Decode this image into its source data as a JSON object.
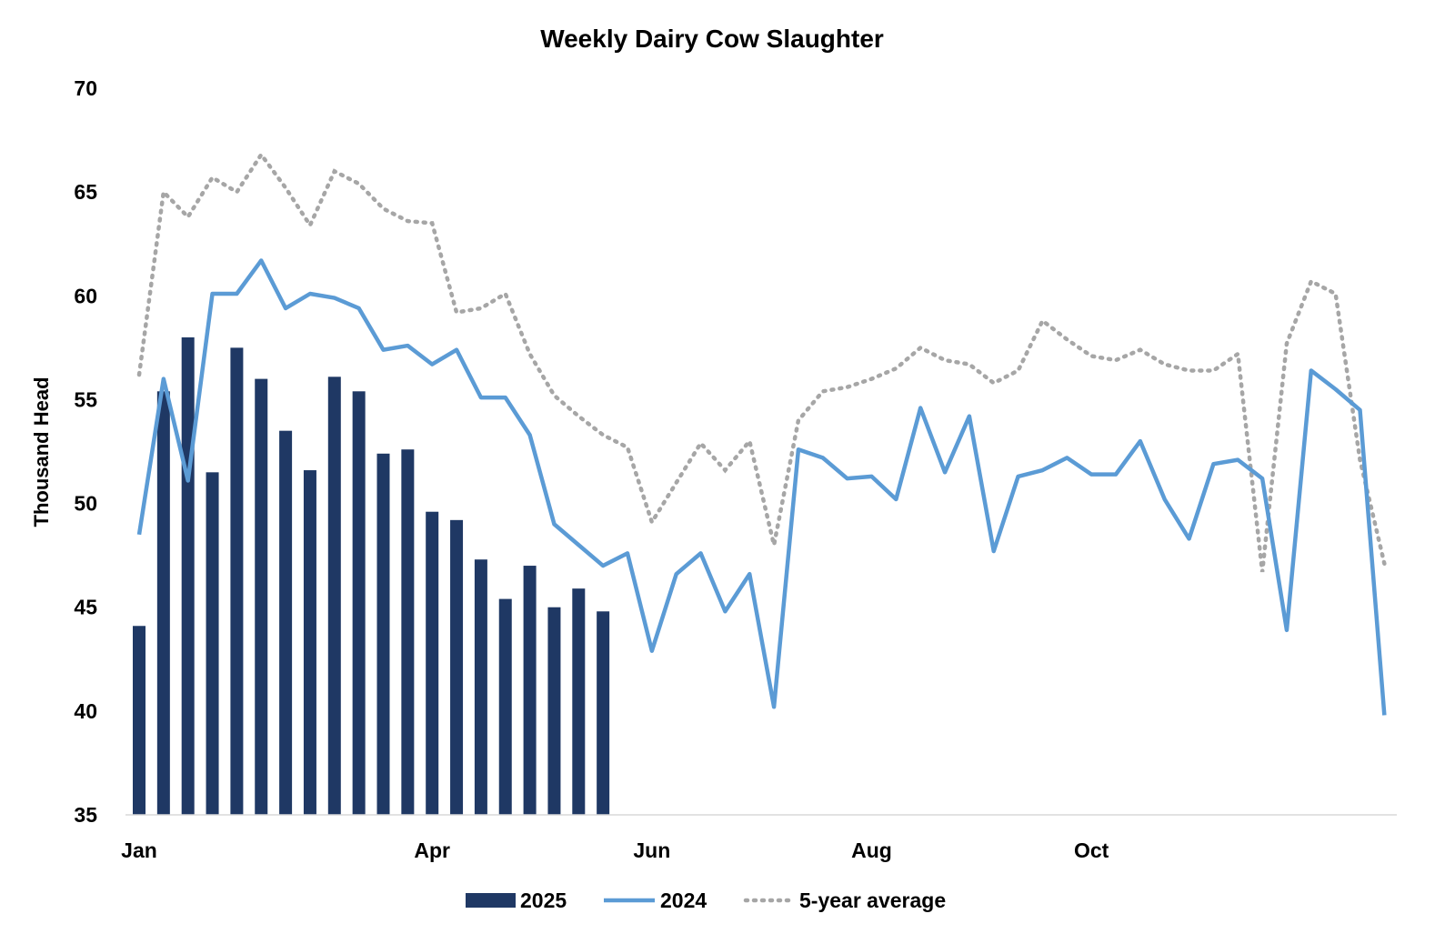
{
  "chart_data": {
    "type": "bar+line",
    "title": "Weekly Dairy Cow Slaughter",
    "xlabel": "",
    "ylabel": "Thousand Head",
    "ylim": [
      35,
      70
    ],
    "yticks": [
      35,
      40,
      45,
      50,
      55,
      60,
      65,
      70
    ],
    "xtick_labels": [
      {
        "label": "Jan",
        "week": 1
      },
      {
        "label": "Apr",
        "week": 13
      },
      {
        "label": "Jun",
        "week": 22
      },
      {
        "label": "Aug",
        "week": 31
      },
      {
        "label": "Oct",
        "week": 40
      }
    ],
    "grid": false,
    "legend_position": "bottom",
    "series": [
      {
        "name": "2025",
        "type": "bar",
        "color": "#1f3864",
        "values": [
          44.1,
          55.4,
          58.0,
          51.5,
          57.5,
          56.0,
          53.5,
          51.6,
          56.1,
          55.4,
          52.4,
          52.6,
          49.6,
          49.2,
          47.3,
          45.4,
          47.0,
          45.0,
          45.9,
          44.8
        ]
      },
      {
        "name": "2024",
        "type": "line",
        "color": "#5b9bd5",
        "values": [
          48.5,
          56.0,
          51.1,
          60.1,
          60.1,
          61.7,
          59.4,
          60.1,
          59.9,
          59.4,
          57.4,
          57.6,
          56.7,
          57.4,
          55.1,
          55.1,
          53.3,
          49.0,
          48.0,
          47.0,
          47.6,
          42.9,
          46.6,
          47.6,
          44.8,
          46.6,
          40.2,
          52.6,
          52.2,
          51.2,
          51.3,
          50.2,
          54.6,
          51.5,
          54.2,
          47.7,
          51.3,
          51.6,
          52.2,
          51.4,
          51.4,
          53.0,
          50.2,
          48.3,
          51.9,
          52.1,
          51.2,
          43.9,
          56.4,
          55.5,
          54.5,
          39.8
        ]
      },
      {
        "name": "5-year average",
        "type": "dotted-line",
        "color": "#a6a6a6",
        "values": [
          56.2,
          65.0,
          63.8,
          65.7,
          65.0,
          66.8,
          65.2,
          63.4,
          66.0,
          65.4,
          64.2,
          63.6,
          63.5,
          59.2,
          59.4,
          60.1,
          57.2,
          55.2,
          54.2,
          53.3,
          52.7,
          49.1,
          51.0,
          52.9,
          51.6,
          53.0,
          48.0,
          54.0,
          55.4,
          55.6,
          56.0,
          56.5,
          57.5,
          56.9,
          56.7,
          55.8,
          56.4,
          58.8,
          57.9,
          57.1,
          56.9,
          57.4,
          56.7,
          56.4,
          56.4,
          57.2,
          46.7,
          57.7,
          60.7,
          60.1,
          52.1,
          47.1
        ]
      }
    ]
  }
}
